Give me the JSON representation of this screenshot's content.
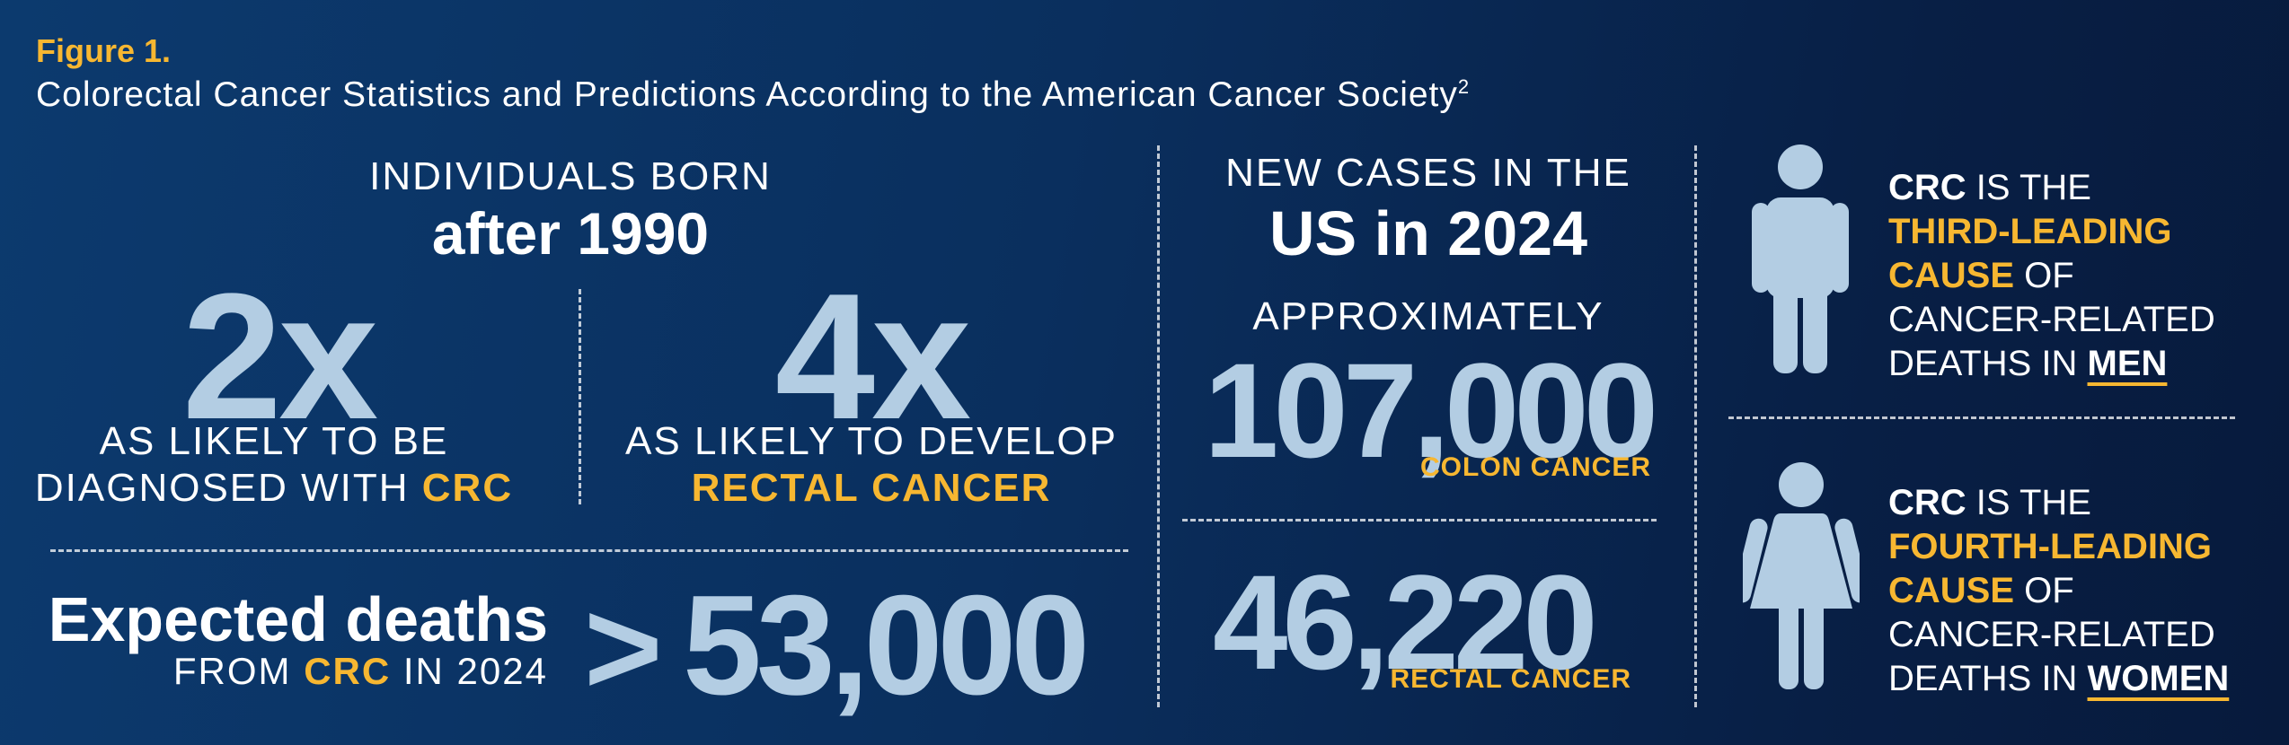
{
  "figure": {
    "label": "Figure 1.",
    "title": "Colorectal Cancer Statistics and Predictions According to the American Cancer Society",
    "title_ref": "2"
  },
  "born": {
    "line1": "INDIVIDUALS BORN",
    "line2": "after 1990",
    "left": {
      "multiplier": "2x",
      "text1": "AS LIKELY TO BE",
      "text2a": "DIAGNOSED WITH ",
      "text2b": "CRC"
    },
    "right": {
      "multiplier": "4x",
      "text1": "AS LIKELY TO DEVELOP",
      "text2": "RECTAL CANCER"
    }
  },
  "deaths": {
    "title": "Expected deaths",
    "sub_a": "FROM ",
    "sub_b": "CRC",
    "sub_c": " IN 2024",
    "symbol": ">",
    "value": "53,000"
  },
  "new_cases": {
    "line1": "NEW CASES IN THE",
    "line2": "US in 2024",
    "approx": "APPROXIMATELY",
    "colon_value": "107,000",
    "colon_label": "COLON CANCER",
    "rectal_value": "46,220",
    "rectal_label": "RECTAL CANCER"
  },
  "men": {
    "l1a": "CRC",
    "l1b": " IS THE",
    "l2": "THIRD-LEADING",
    "l3a": "CAUSE",
    "l3b": " OF",
    "l4": "CANCER-RELATED",
    "l5a": "DEATHS IN ",
    "l5b": "MEN"
  },
  "women": {
    "l1a": "CRC",
    "l1b": " IS THE",
    "l2": "FOURTH-LEADING",
    "l3a": "CAUSE",
    "l3b": " OF",
    "l4": "CANCER-RELATED",
    "l5a": "DEATHS IN ",
    "l5b": "WOMEN"
  },
  "colors": {
    "background": "#0a2f5e",
    "accent_gold": "#f7b731",
    "pale_blue": "#b3cde3",
    "white": "#ffffff"
  },
  "icons": [
    "man-icon",
    "woman-icon"
  ]
}
